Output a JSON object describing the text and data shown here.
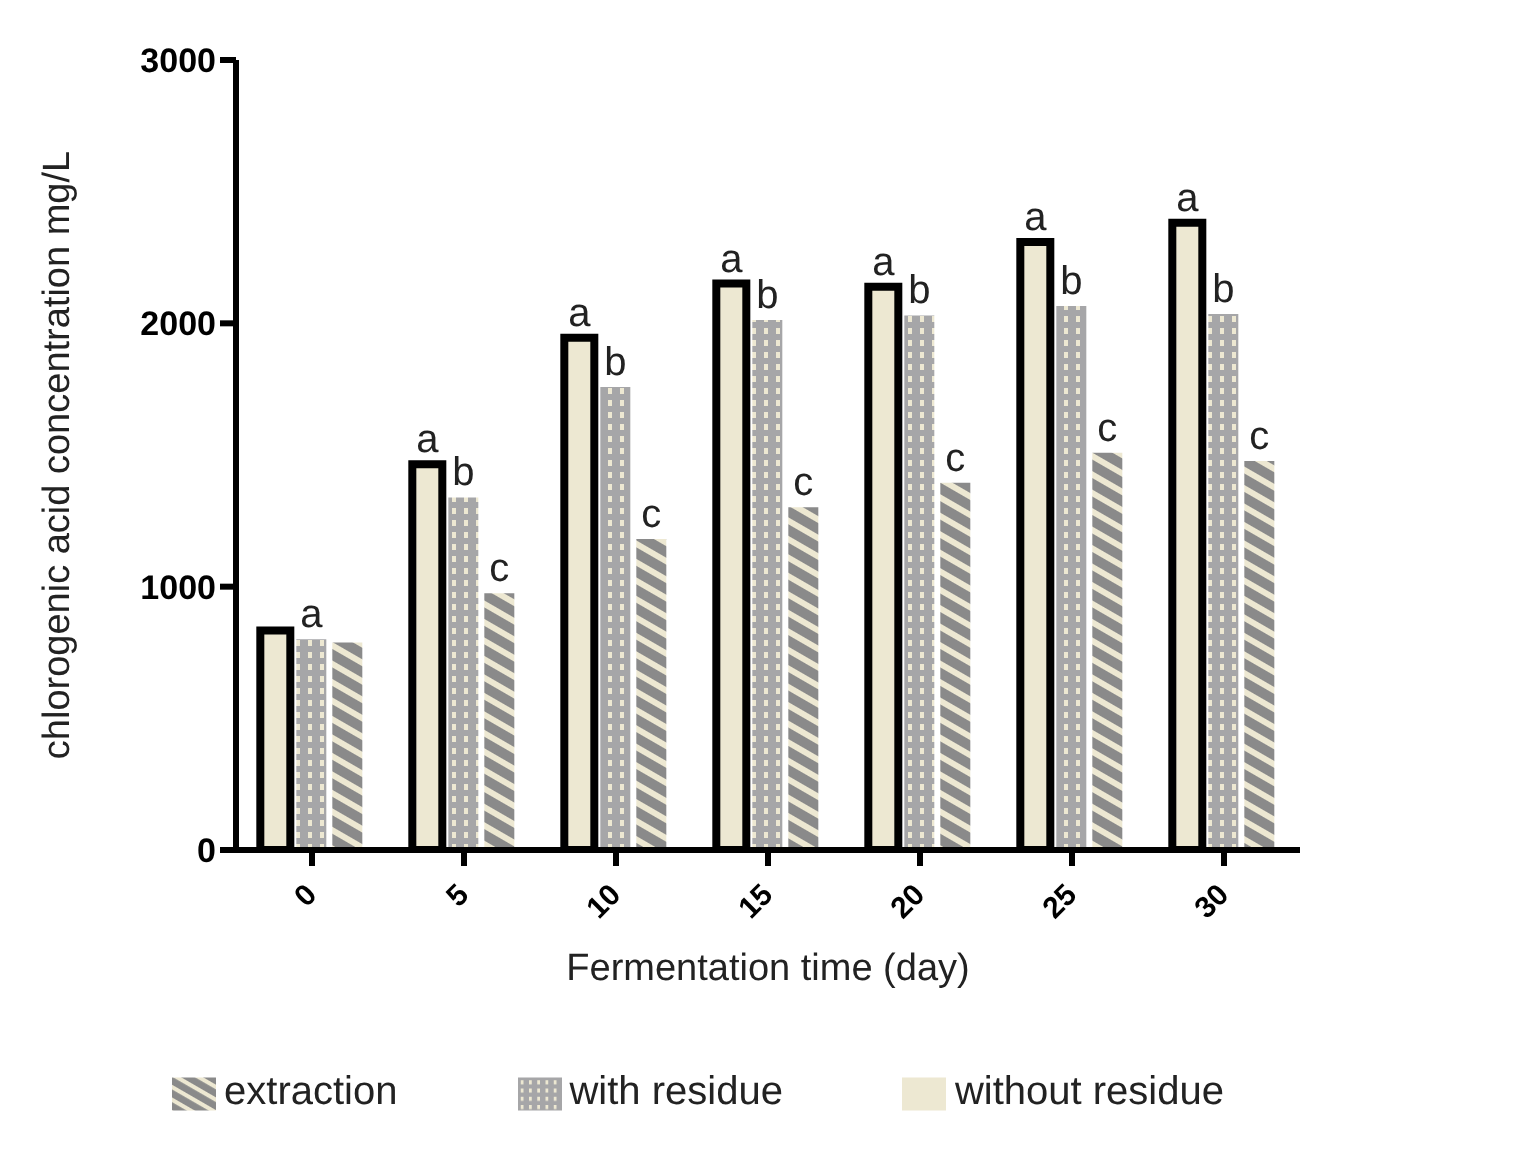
{
  "chart_data": {
    "type": "bar",
    "xlabel": "Fermentation time (day)",
    "ylabel": "chlorogenic acid concentration mg/L",
    "categories": [
      "0",
      "5",
      "10",
      "15",
      "20",
      "25",
      "30"
    ],
    "series": [
      {
        "name": "without residue",
        "color": "#ede8d2",
        "values": [
          834,
          1465,
          1945,
          2151,
          2139,
          2309,
          2382
        ],
        "value_labels": [
          null,
          "a",
          "a",
          "a",
          "a",
          "a",
          "a"
        ]
      },
      {
        "name": "with residue",
        "color": "#a6a6a8",
        "values": [
          800,
          1339,
          1758,
          2013,
          2030,
          2066,
          2035
        ],
        "value_labels": [
          "a",
          "b",
          "b",
          "b",
          "b",
          "b",
          "b"
        ]
      },
      {
        "name": "extraction",
        "color": "#8a8a8a",
        "values": [
          788,
          975,
          1181,
          1302,
          1395,
          1509,
          1477
        ],
        "value_labels": [
          null,
          "c",
          "c",
          "c",
          "c",
          "c",
          "c"
        ]
      }
    ],
    "ylim": [
      0,
      3000
    ],
    "yticks": [
      0,
      1000,
      2000,
      3000
    ],
    "grid": false,
    "legend": "bottom"
  }
}
